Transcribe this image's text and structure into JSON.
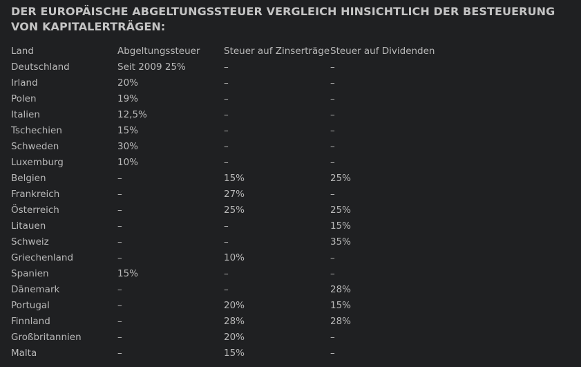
{
  "title": "DER EUROPÄISCHE ABGELTUNGSSTEUER VERGLEICH HINSICHTLICH DER BESTEUERUNG VON KAPITALERTRÄGEN:",
  "table": {
    "headers": [
      "Land",
      "Abgeltungssteuer",
      "Steuer auf Zinserträge",
      "Steuer auf Dividenden"
    ],
    "rows": [
      [
        "Deutschland",
        "Seit 2009 25%",
        "–",
        "–"
      ],
      [
        "Irland",
        "20%",
        "–",
        "–"
      ],
      [
        "Polen",
        "19%",
        "–",
        "–"
      ],
      [
        "Italien",
        "12,5%",
        "–",
        "–"
      ],
      [
        "Tschechien",
        "15%",
        "–",
        "–"
      ],
      [
        "Schweden",
        "30%",
        "–",
        "–"
      ],
      [
        "Luxemburg",
        "10%",
        "–",
        "–"
      ],
      [
        "Belgien",
        "–",
        "15%",
        "25%"
      ],
      [
        "Frankreich",
        "–",
        "27%",
        "–"
      ],
      [
        "Österreich",
        "–",
        "25%",
        "25%"
      ],
      [
        "Litauen",
        "–",
        "–",
        "15%"
      ],
      [
        "Schweiz",
        "–",
        "–",
        "35%"
      ],
      [
        "Griechenland",
        "–",
        "10%",
        "–"
      ],
      [
        "Spanien",
        "15%",
        "–",
        "–"
      ],
      [
        "Dänemark",
        "–",
        "–",
        "28%"
      ],
      [
        "Portugal",
        "–",
        "20%",
        "15%"
      ],
      [
        "Finnland",
        "–",
        "28%",
        "28%"
      ],
      [
        "Großbritannien",
        "–",
        "20%",
        "–"
      ],
      [
        "Malta",
        "–",
        "15%",
        "–"
      ]
    ]
  }
}
